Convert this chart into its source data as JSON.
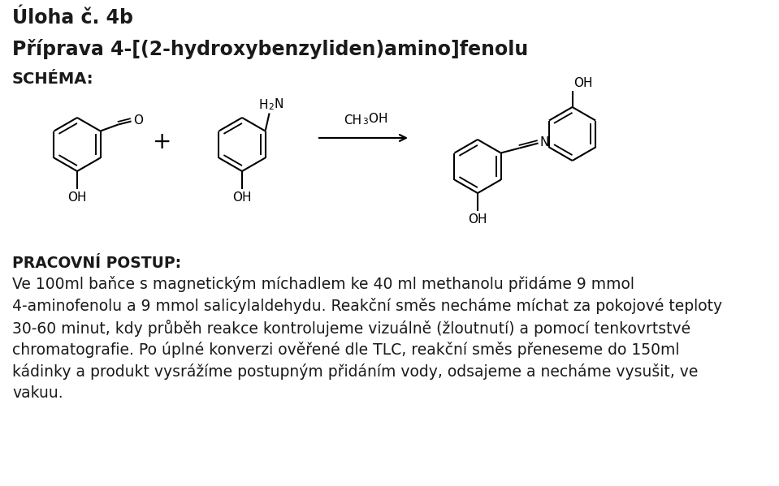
{
  "title1": "Úloha č. 4b",
  "title2": "Příprava 4-[(2-hydroxybenzyliden)amino]fenolu",
  "schema_label": "SCHÉMA:",
  "pracovni_postup": "PRACOVNÍ POSTUP:",
  "text1": "Ve 100ml baňce s magnetickým míchadlem ke 40 ml methanolu přidáme 9 mmol",
  "text2": "4-aminofenolu a 9 mmol salicylaldehydu. Reakční směs necháme míchat za pokojové teploty",
  "text3": "30-60 minut, kdy průběh reakce kontrolujeme vizuálně (žloutnutí) a pomocí tenkovrtstvé",
  "text4": "chromatografie. Po úplné konverzi ověřené dle TLC, reakční směs přeneseme do 150ml",
  "text5": "kádinky a produkt vysrážíme postupným přidáním vody, odsajeme a necháme vysušit, ve",
  "text6": "vakuu.",
  "bg_color": "#ffffff",
  "text_color": "#1a1a1a"
}
